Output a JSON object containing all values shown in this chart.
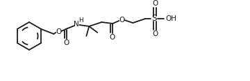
{
  "bg_color": "#ffffff",
  "line_color": "#1a1a1a",
  "line_width": 1.3,
  "figsize": [
    3.6,
    1.17
  ],
  "dpi": 100,
  "xlim": [
    0,
    360
  ],
  "ylim": [
    0,
    117
  ]
}
